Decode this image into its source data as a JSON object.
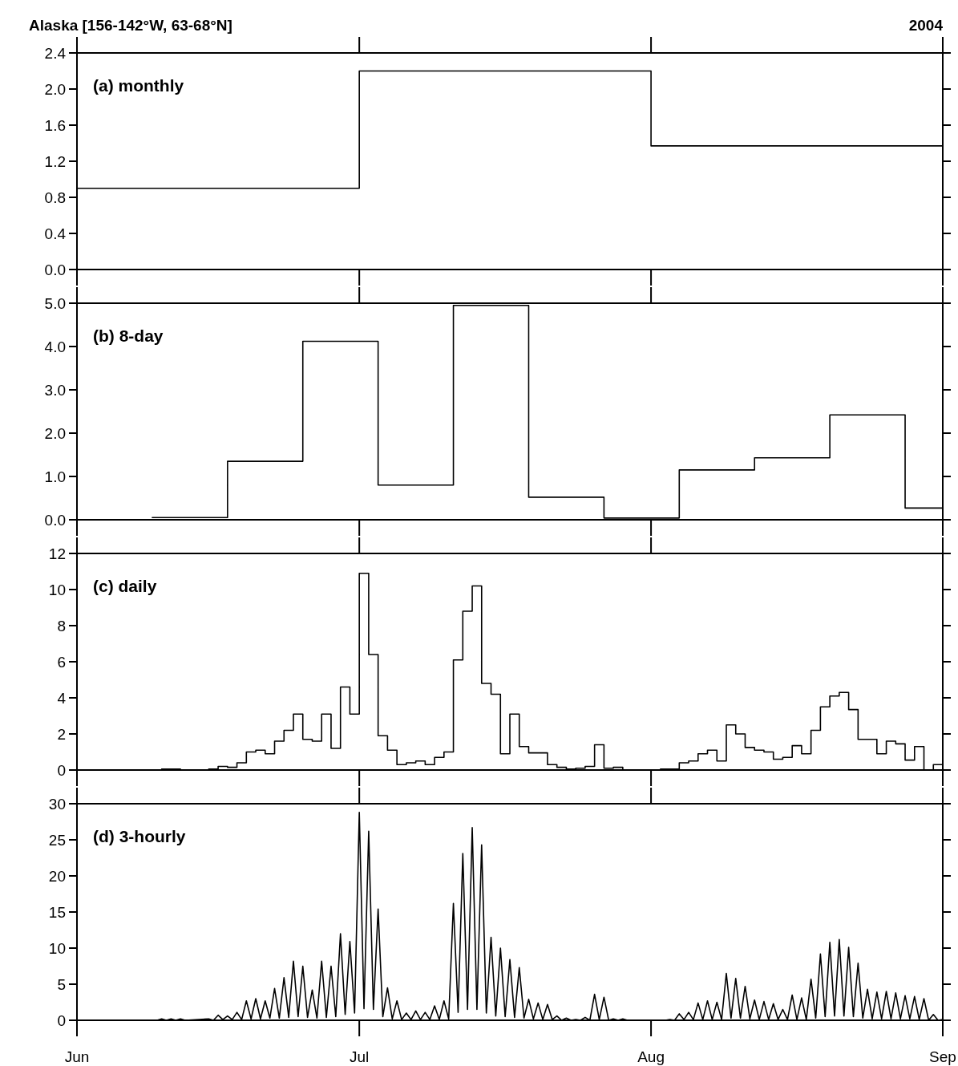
{
  "chart_data": [
    {
      "type": "step",
      "title": "Alaska [156-142°W, 63-68°N]",
      "subtitle": "2004",
      "annotations": [
        "(a) monthly"
      ],
      "xlim": [
        "2004-06-01",
        "2004-09-01"
      ],
      "xticks": [
        {
          "value": "2004-06-01",
          "label": null
        },
        {
          "value": "2004-07-01",
          "label": null
        },
        {
          "value": "2004-08-01",
          "label": null
        },
        {
          "value": "2004-09-01",
          "label": null
        }
      ],
      "tick_labels": "y",
      "ylim": [
        0,
        2.4
      ],
      "yticks": [
        {
          "value": 0,
          "label": "0.0"
        },
        {
          "value": 0.4,
          "label": "0.4"
        },
        {
          "value": 0.8,
          "label": "0.8"
        },
        {
          "value": 1.2,
          "label": "1.2"
        },
        {
          "value": 1.6,
          "label": "1.6"
        },
        {
          "value": 2.0,
          "label": "2.0"
        },
        {
          "value": 2.4,
          "label": "2.4"
        }
      ],
      "x": [
        "2004-06-01",
        "2004-07-01",
        "2004-08-01",
        "2004-09-01"
      ],
      "series": [
        {
          "color": "#000000",
          "values": [
            0.9,
            2.2,
            1.37,
            1.37
          ]
        }
      ]
    },
    {
      "type": "step",
      "annotations": [
        "(b) 8-day"
      ],
      "xlim": [
        "2004-06-01",
        "2004-09-01"
      ],
      "xticks": [
        {
          "value": "2004-06-01",
          "label": null
        },
        {
          "value": "2004-07-01",
          "label": null
        },
        {
          "value": "2004-08-01",
          "label": null
        },
        {
          "value": "2004-09-01",
          "label": null
        }
      ],
      "tick_labels": "y",
      "ylim": [
        0,
        5
      ],
      "yticks": [
        {
          "value": 0,
          "label": "0.0"
        },
        {
          "value": 1,
          "label": "1.0"
        },
        {
          "value": 2,
          "label": "2.0"
        },
        {
          "value": 3,
          "label": "3.0"
        },
        {
          "value": 4,
          "label": "4.0"
        },
        {
          "value": 5,
          "label": "5.0"
        }
      ],
      "x": [
        "2004-06-09",
        "2004-06-17",
        "2004-06-25",
        "2004-07-03",
        "2004-07-11",
        "2004-07-19",
        "2004-07-27",
        "2004-08-04",
        "2004-08-12",
        "2004-08-20",
        "2004-08-28",
        "2004-09-01"
      ],
      "series": [
        {
          "color": "#000000",
          "values": [
            0.05,
            1.35,
            4.12,
            0.8,
            4.95,
            0.52,
            0.04,
            1.15,
            1.43,
            2.42,
            0.27,
            0.27
          ]
        }
      ]
    },
    {
      "type": "step",
      "annotations": [
        "(c) daily"
      ],
      "xlim": [
        "2004-06-01",
        "2004-09-01"
      ],
      "xticks": [
        {
          "value": "2004-06-01",
          "label": null
        },
        {
          "value": "2004-07-01",
          "label": null
        },
        {
          "value": "2004-08-01",
          "label": null
        },
        {
          "value": "2004-09-01",
          "label": null
        }
      ],
      "tick_labels": "y",
      "ylim": [
        0,
        12
      ],
      "yticks": [
        0,
        2,
        4,
        6,
        8,
        10,
        12
      ],
      "x": [
        "2004-06-09",
        "2004-06-10",
        "2004-06-11",
        "2004-06-12",
        "2004-06-13",
        "2004-06-14",
        "2004-06-15",
        "2004-06-16",
        "2004-06-17",
        "2004-06-18",
        "2004-06-19",
        "2004-06-20",
        "2004-06-21",
        "2004-06-22",
        "2004-06-23",
        "2004-06-24",
        "2004-06-25",
        "2004-06-26",
        "2004-06-27",
        "2004-06-28",
        "2004-06-29",
        "2004-06-30",
        "2004-07-01",
        "2004-07-02",
        "2004-07-03",
        "2004-07-04",
        "2004-07-05",
        "2004-07-06",
        "2004-07-07",
        "2004-07-08",
        "2004-07-09",
        "2004-07-10",
        "2004-07-11",
        "2004-07-12",
        "2004-07-13",
        "2004-07-14",
        "2004-07-15",
        "2004-07-16",
        "2004-07-17",
        "2004-07-18",
        "2004-07-19",
        "2004-07-20",
        "2004-07-21",
        "2004-07-22",
        "2004-07-23",
        "2004-07-24",
        "2004-07-25",
        "2004-07-26",
        "2004-07-27",
        "2004-07-28",
        "2004-07-29",
        "2004-07-30",
        "2004-07-31",
        "2004-08-01",
        "2004-08-02",
        "2004-08-03",
        "2004-08-04",
        "2004-08-05",
        "2004-08-06",
        "2004-08-07",
        "2004-08-08",
        "2004-08-09",
        "2004-08-10",
        "2004-08-11",
        "2004-08-12",
        "2004-08-13",
        "2004-08-14",
        "2004-08-15",
        "2004-08-16",
        "2004-08-17",
        "2004-08-18",
        "2004-08-19",
        "2004-08-20",
        "2004-08-21",
        "2004-08-22",
        "2004-08-23",
        "2004-08-24",
        "2004-08-25",
        "2004-08-26",
        "2004-08-27",
        "2004-08-28",
        "2004-08-29",
        "2004-08-30",
        "2004-08-31",
        "2004-09-01"
      ],
      "series": [
        {
          "color": "#000000",
          "values": [
            0,
            0.05,
            0.05,
            0,
            0,
            0,
            0.05,
            0.2,
            0.15,
            0.4,
            1.0,
            1.1,
            0.9,
            1.6,
            2.2,
            3.1,
            1.7,
            1.6,
            3.1,
            1.2,
            4.6,
            3.1,
            10.9,
            6.4,
            1.9,
            1.1,
            0.3,
            0.4,
            0.5,
            0.3,
            0.7,
            1.0,
            6.1,
            8.8,
            10.2,
            4.8,
            4.2,
            0.9,
            3.1,
            1.3,
            0.95,
            0.95,
            0.3,
            0.15,
            0.05,
            0.1,
            0.2,
            1.4,
            0.1,
            0.15,
            0,
            0,
            0,
            0,
            0.05,
            0.05,
            0.4,
            0.5,
            0.9,
            1.1,
            0.5,
            2.5,
            2.0,
            1.25,
            1.1,
            1.0,
            0.6,
            0.7,
            1.35,
            0.9,
            2.2,
            3.5,
            4.1,
            4.3,
            3.35,
            1.7,
            1.7,
            0.9,
            1.6,
            1.45,
            0.55,
            1.3,
            0,
            0.3,
            0.3
          ]
        }
      ]
    },
    {
      "type": "line",
      "annotations": [
        "(d) 3-hourly"
      ],
      "xlim": [
        "2004-06-01",
        "2004-09-01"
      ],
      "xticks": [
        {
          "value": "2004-06-01",
          "label": "Jun"
        },
        {
          "value": "2004-07-01",
          "label": "Jul"
        },
        {
          "value": "2004-08-01",
          "label": "Aug"
        },
        {
          "value": "2004-09-01",
          "label": "Sep"
        }
      ],
      "ylim": [
        0,
        30
      ],
      "yticks": [
        0,
        5,
        10,
        15,
        20,
        25,
        30
      ],
      "x": [
        "2004-06-09T12:00",
        "2004-06-10T00:00",
        "2004-06-10T12:00",
        "2004-06-11T00:00",
        "2004-06-11T12:00",
        "2004-06-12T00:00",
        "2004-06-12T12:00",
        "2004-06-15T00:00",
        "2004-06-15T12:00",
        "2004-06-16T00:00",
        "2004-06-16T12:00",
        "2004-06-17T00:00",
        "2004-06-17T12:00",
        "2004-06-18T00:00",
        "2004-06-18T12:00",
        "2004-06-19T00:00",
        "2004-06-19T12:00",
        "2004-06-20T00:00",
        "2004-06-20T12:00",
        "2004-06-21T00:00",
        "2004-06-21T12:00",
        "2004-06-22T00:00",
        "2004-06-22T12:00",
        "2004-06-23T00:00",
        "2004-06-23T12:00",
        "2004-06-24T00:00",
        "2004-06-24T12:00",
        "2004-06-25T00:00",
        "2004-06-25T12:00",
        "2004-06-26T00:00",
        "2004-06-26T12:00",
        "2004-06-27T00:00",
        "2004-06-27T12:00",
        "2004-06-28T00:00",
        "2004-06-28T12:00",
        "2004-06-29T00:00",
        "2004-06-29T12:00",
        "2004-06-30T00:00",
        "2004-06-30T12:00",
        "2004-07-01T00:00",
        "2004-07-01T12:00",
        "2004-07-02T00:00",
        "2004-07-02T12:00",
        "2004-07-03T00:00",
        "2004-07-03T12:00",
        "2004-07-04T00:00",
        "2004-07-04T12:00",
        "2004-07-05T00:00",
        "2004-07-05T12:00",
        "2004-07-06T00:00",
        "2004-07-06T12:00",
        "2004-07-07T00:00",
        "2004-07-07T12:00",
        "2004-07-08T00:00",
        "2004-07-08T12:00",
        "2004-07-09T00:00",
        "2004-07-09T12:00",
        "2004-07-10T00:00",
        "2004-07-10T12:00",
        "2004-07-11T00:00",
        "2004-07-11T12:00",
        "2004-07-12T00:00",
        "2004-07-12T12:00",
        "2004-07-13T00:00",
        "2004-07-13T12:00",
        "2004-07-14T00:00",
        "2004-07-14T12:00",
        "2004-07-15T00:00",
        "2004-07-15T12:00",
        "2004-07-16T00:00",
        "2004-07-16T12:00",
        "2004-07-17T00:00",
        "2004-07-17T12:00",
        "2004-07-18T00:00",
        "2004-07-18T12:00",
        "2004-07-19T00:00",
        "2004-07-19T12:00",
        "2004-07-20T00:00",
        "2004-07-20T12:00",
        "2004-07-21T00:00",
        "2004-07-21T12:00",
        "2004-07-22T00:00",
        "2004-07-22T12:00",
        "2004-07-23T00:00",
        "2004-07-23T12:00",
        "2004-07-24T00:00",
        "2004-07-24T12:00",
        "2004-07-25T00:00",
        "2004-07-25T12:00",
        "2004-07-26T00:00",
        "2004-07-26T12:00",
        "2004-07-27T00:00",
        "2004-07-27T12:00",
        "2004-07-28T00:00",
        "2004-07-28T12:00",
        "2004-07-29T00:00",
        "2004-07-29T12:00",
        "2004-08-02T12:00",
        "2004-08-03T00:00",
        "2004-08-03T12:00",
        "2004-08-04T00:00",
        "2004-08-04T12:00",
        "2004-08-05T00:00",
        "2004-08-05T12:00",
        "2004-08-06T00:00",
        "2004-08-06T12:00",
        "2004-08-07T00:00",
        "2004-08-07T12:00",
        "2004-08-08T00:00",
        "2004-08-08T12:00",
        "2004-08-09T00:00",
        "2004-08-09T12:00",
        "2004-08-10T00:00",
        "2004-08-10T12:00",
        "2004-08-11T00:00",
        "2004-08-11T12:00",
        "2004-08-12T00:00",
        "2004-08-12T12:00",
        "2004-08-13T00:00",
        "2004-08-13T12:00",
        "2004-08-14T00:00",
        "2004-08-14T12:00",
        "2004-08-15T00:00",
        "2004-08-15T12:00",
        "2004-08-16T00:00",
        "2004-08-16T12:00",
        "2004-08-17T00:00",
        "2004-08-17T12:00",
        "2004-08-18T00:00",
        "2004-08-18T12:00",
        "2004-08-19T00:00",
        "2004-08-19T12:00",
        "2004-08-20T00:00",
        "2004-08-20T12:00",
        "2004-08-21T00:00",
        "2004-08-21T12:00",
        "2004-08-22T00:00",
        "2004-08-22T12:00",
        "2004-08-23T00:00",
        "2004-08-23T12:00",
        "2004-08-24T00:00",
        "2004-08-24T12:00",
        "2004-08-25T00:00",
        "2004-08-25T12:00",
        "2004-08-26T00:00",
        "2004-08-26T12:00",
        "2004-08-27T00:00",
        "2004-08-27T12:00",
        "2004-08-28T00:00",
        "2004-08-28T12:00",
        "2004-08-29T00:00",
        "2004-08-29T12:00",
        "2004-08-30T00:00",
        "2004-08-30T12:00",
        "2004-08-31T00:00",
        "2004-08-31T12:00",
        "2004-09-01T00:00"
      ],
      "series": [
        {
          "color": "#000000",
          "values": [
            0,
            0.2,
            0,
            0.2,
            0,
            0.2,
            0,
            0.2,
            0,
            0.7,
            0.1,
            0.6,
            0.1,
            1.1,
            0.1,
            2.7,
            0.2,
            3.0,
            0.2,
            2.7,
            0.3,
            4.4,
            0.3,
            5.9,
            0.4,
            8.2,
            0.5,
            7.5,
            0.4,
            4.2,
            0.3,
            8.2,
            0.4,
            7.5,
            0.5,
            12.0,
            0.8,
            10.9,
            1.0,
            28.8,
            1.6,
            26.2,
            1.5,
            15.4,
            0.5,
            4.5,
            0.2,
            2.7,
            0.1,
            1.0,
            0.1,
            1.3,
            0.1,
            1.1,
            0.1,
            2.0,
            0.1,
            2.7,
            0.2,
            16.2,
            1.1,
            23.1,
            1.5,
            26.7,
            1.5,
            24.3,
            1.0,
            11.5,
            0.6,
            10.0,
            0.5,
            8.4,
            0.4,
            7.3,
            0.3,
            2.9,
            0.2,
            2.4,
            0.1,
            2.2,
            0.1,
            0.6,
            0,
            0.3,
            0,
            0.1,
            0,
            0.4,
            0,
            3.6,
            0.1,
            3.2,
            0,
            0.2,
            0,
            0.2,
            0,
            0,
            0.1,
            0,
            0.9,
            0.1,
            1.1,
            0.1,
            2.4,
            0.1,
            2.7,
            0.1,
            2.5,
            0.1,
            6.5,
            0.3,
            5.8,
            0.3,
            4.7,
            0.2,
            2.8,
            0.1,
            2.6,
            0.1,
            2.3,
            0.1,
            1.5,
            0.1,
            3.5,
            0.1,
            3.1,
            0.1,
            5.7,
            0.3,
            9.2,
            0.5,
            10.8,
            0.6,
            11.2,
            0.6,
            10.1,
            0.5,
            7.9,
            0.3,
            4.3,
            0.2,
            3.9,
            0.2,
            4.0,
            0.2,
            3.8,
            0.2,
            3.4,
            0.2,
            3.3,
            0.1,
            3.0,
            0,
            0.8,
            0,
            0.1
          ]
        }
      ]
    }
  ]
}
